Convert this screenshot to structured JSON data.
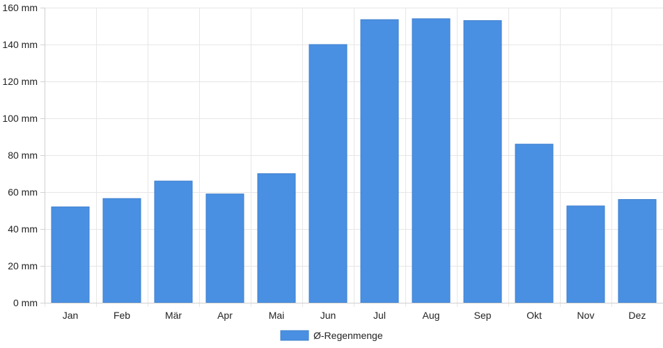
{
  "chart_data": {
    "type": "bar",
    "categories": [
      "Jan",
      "Feb",
      "Mär",
      "Apr",
      "Mai",
      "Jun",
      "Jul",
      "Aug",
      "Sep",
      "Okt",
      "Nov",
      "Dez"
    ],
    "series": [
      {
        "name": "Ø-Regenmenge",
        "values": [
          52,
          56.5,
          66,
          59,
          70,
          140,
          153.5,
          154,
          153,
          86,
          52.5,
          56
        ],
        "color": "#4a90e2"
      }
    ],
    "ylim": [
      0,
      160
    ],
    "y_ticks": [
      "0 mm",
      "20 mm",
      "40 mm",
      "60 mm",
      "80 mm",
      "100 mm",
      "120 mm",
      "140 mm",
      "160 mm"
    ],
    "y_tick_values": [
      0,
      20,
      40,
      60,
      80,
      100,
      120,
      140,
      160
    ],
    "grid": true,
    "legend_position": "bottom-center"
  }
}
